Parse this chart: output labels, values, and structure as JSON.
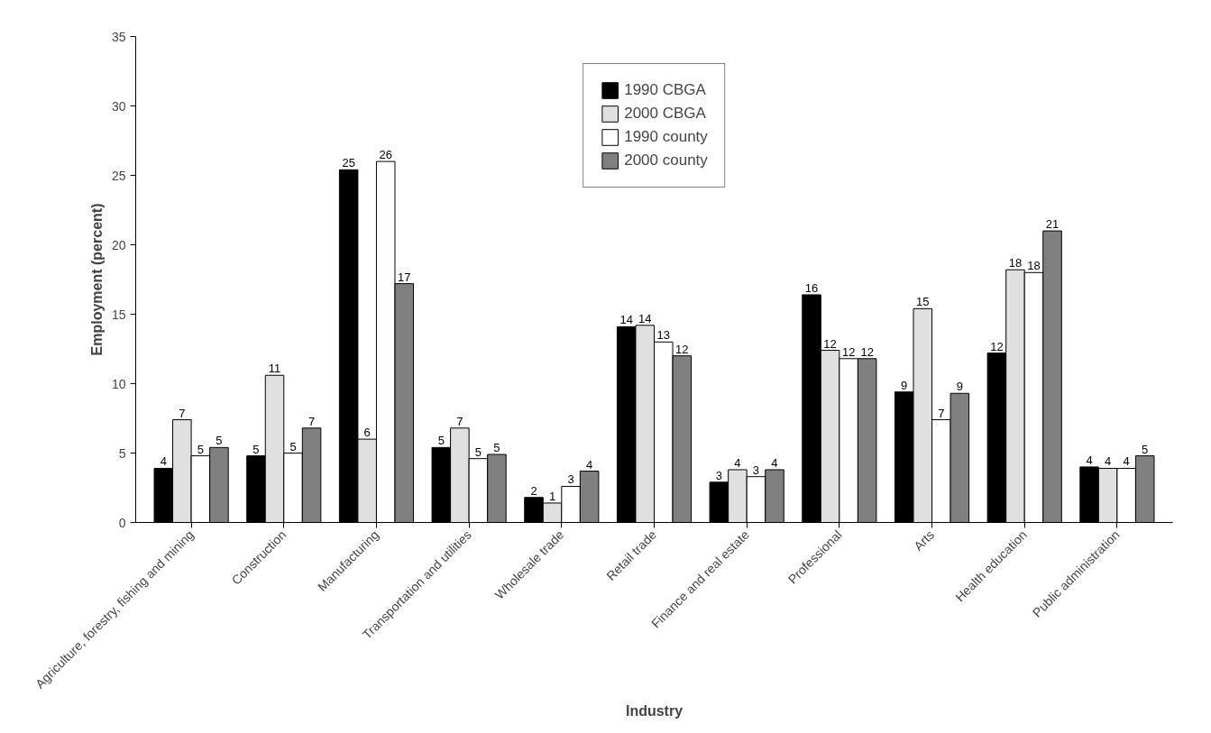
{
  "chart_data": {
    "type": "bar",
    "xlabel": "Industry",
    "ylabel": "Employment (percent)",
    "categories": [
      "Agriculture, forestry, fishing and mining",
      "Construction",
      "Manufacturing",
      "Transportation and utilities",
      "Wholesale trade",
      "Retail trade",
      "Finance and real estate",
      "Professional",
      "Arts",
      "Health education",
      "Public administration"
    ],
    "series": [
      {
        "name": "1990 CBGA",
        "color": "#000000",
        "values": [
          3.9,
          4.8,
          25.4,
          5.4,
          1.8,
          14.1,
          2.9,
          16.4,
          9.4,
          12.2,
          4.0
        ],
        "value_labels": [
          "4",
          "5",
          "25",
          "5",
          "2",
          "14",
          "3",
          "16",
          "9",
          "12",
          "4"
        ]
      },
      {
        "name": "2000 CBGA",
        "color": "#e0e0e0",
        "values": [
          7.4,
          10.6,
          6.0,
          6.8,
          1.4,
          14.2,
          3.8,
          12.4,
          15.4,
          18.2,
          3.9
        ],
        "value_labels": [
          "7",
          "11",
          "6",
          "7",
          "1",
          "14",
          "4",
          "12",
          "15",
          "18",
          "4"
        ]
      },
      {
        "name": "1990 county",
        "color": "#ffffff",
        "values": [
          4.8,
          5.0,
          26.0,
          4.6,
          2.6,
          13.0,
          3.3,
          11.8,
          7.4,
          18.0,
          3.9
        ],
        "value_labels": [
          "5",
          "5",
          "26",
          "5",
          "3",
          "13",
          "3",
          "12",
          "7",
          "18",
          "4"
        ]
      },
      {
        "name": "2000 county",
        "color": "#808080",
        "values": [
          5.4,
          6.8,
          17.2,
          4.9,
          3.7,
          12.0,
          3.8,
          11.8,
          9.3,
          21.0,
          4.8
        ],
        "value_labels": [
          "5",
          "7",
          "17",
          "5",
          "4",
          "12",
          "4",
          "12",
          "9",
          "21",
          "5"
        ]
      }
    ],
    "ylim": [
      0,
      35
    ],
    "yticks": [
      0,
      5,
      10,
      15,
      20,
      25,
      30,
      35
    ],
    "grid": false,
    "legend": "top"
  }
}
